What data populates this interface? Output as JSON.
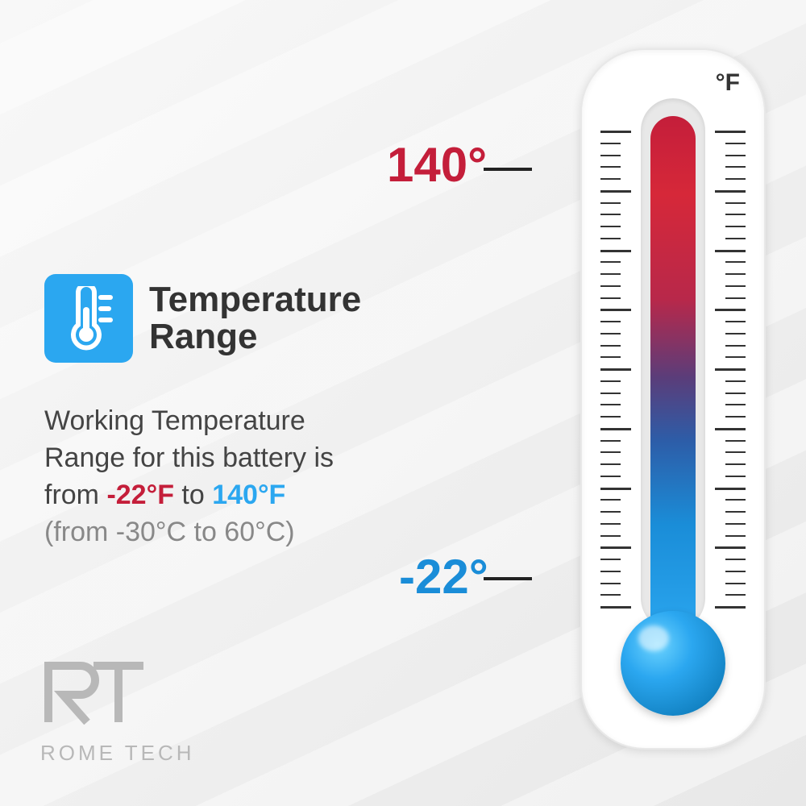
{
  "title": "Temperature\nRange",
  "description": {
    "line1": "Working Temperature",
    "line2_a": "Range for this battery is",
    "line3_a": "from ",
    "cold_f": "-22°F",
    "line3_b": " to ",
    "hot_f": "140°F",
    "celsius": "(from -30°C to 60°C)"
  },
  "thermometer": {
    "unit": "°F",
    "hot_label": "140°",
    "cold_label": "-22°",
    "hot_color": "#c41e3a",
    "cold_color": "#1a8dd8",
    "gradient_colors": [
      "#c41e3a",
      "#d62839",
      "#b8284a",
      "#5a3d7a",
      "#2d5da8",
      "#1a8dd8",
      "#2ba7f0"
    ],
    "bulb_color": "#2ba7f0",
    "body_color": "#ffffff",
    "tick_count": 40
  },
  "icon": {
    "bg_color": "#2ba7f0",
    "name": "thermometer-icon"
  },
  "logo": {
    "initials": "RT",
    "text": "ROME TECH",
    "color": "#b8b8b8"
  },
  "colors": {
    "text_primary": "#333333",
    "text_secondary": "#444444",
    "text_muted": "#888888",
    "background": "#f0f0f0"
  }
}
